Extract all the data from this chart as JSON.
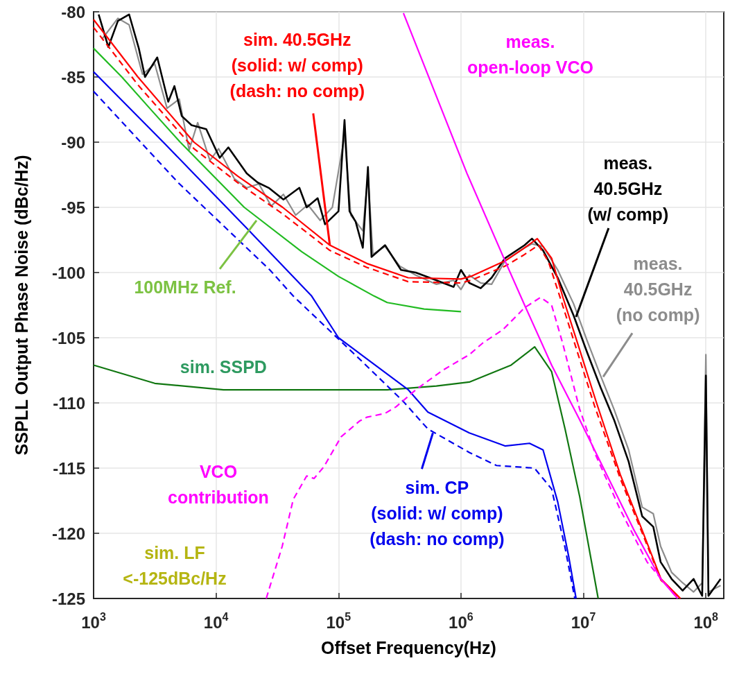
{
  "chart_data": {
    "type": "line",
    "xlabel": "Offset Frequency(Hz)",
    "ylabel": "SSPLL Output Phase Noise (dBc/Hz)",
    "log": "x",
    "grid": true,
    "marker": "none",
    "xlim": [
      1000,
      140000000
    ],
    "xticks": [
      {
        "value": 1000,
        "label": "10$^{3}$"
      },
      {
        "value": 10000,
        "label": "10$^{4}$"
      },
      {
        "value": 100000,
        "label": "10$^{5}$"
      },
      {
        "value": 1000000,
        "label": "10$^{6}$"
      },
      {
        "value": 10000000,
        "label": "10$^{7}$"
      },
      {
        "value": 100000000,
        "label": "10$^{8}$"
      }
    ],
    "ylim": [
      -125,
      -80
    ],
    "yticks": [
      -125,
      -120,
      -115,
      -110,
      -105,
      -100,
      -95,
      -90,
      -85,
      -80
    ],
    "series": [
      {
        "color": "#8c8c8c",
        "line_style": "solid",
        "x": [
          1170,
          1580,
          1950,
          2510,
          3160,
          3980,
          5010,
          6030,
          7080,
          8910,
          10500,
          14100,
          17800,
          22400,
          28200,
          35500,
          44700,
          56200,
          70800,
          89100,
          112000,
          126000,
          158000,
          174000,
          191000,
          240000,
          316000,
          427000,
          631000,
          871000,
          1000000,
          1170000,
          1450000,
          1780000,
          2290000,
          3310000,
          3800000,
          4680000,
          6170000,
          8320000,
          10700000,
          13800000,
          17800000,
          23400000,
          30200000,
          37200000,
          42700000,
          52500000,
          64600000,
          79400000,
          93300000,
          100000000,
          105000000,
          132000000
        ],
        "values": [
          -82.1,
          -80.5,
          -81.0,
          -84.8,
          -84.0,
          -87.4,
          -86.7,
          -90.6,
          -88.5,
          -91.4,
          -90.5,
          -92.8,
          -93.5,
          -93.2,
          -94.9,
          -94.0,
          -95.6,
          -94.8,
          -96.0,
          -95.0,
          -89.5,
          -95.6,
          -96.8,
          -92.5,
          -98.6,
          -98.0,
          -99.5,
          -100.2,
          -100.9,
          -100.6,
          -101.3,
          -100.2,
          -100.8,
          -100.9,
          -99.1,
          -98.1,
          -97.8,
          -98.0,
          -99.8,
          -102.4,
          -105.2,
          -107.9,
          -110.5,
          -113.6,
          -118.0,
          -118.5,
          -121.0,
          -123.0,
          -123.8,
          -124.5,
          -123.8,
          -106.3,
          -124.5,
          -124.0
        ]
      },
      {
        "color": "#000000",
        "line_style": "solid",
        "x": [
          1100,
          1320,
          1580,
          1950,
          2340,
          2630,
          3310,
          4070,
          4570,
          5250,
          6310,
          8320,
          10700,
          12600,
          17800,
          21900,
          26900,
          35500,
          47900,
          55000,
          67600,
          77600,
          100000,
          112000,
          123000,
          138000,
          158000,
          174000,
          186000,
          240000,
          324000,
          427000,
          631000,
          871000,
          1000000,
          1170000,
          1450000,
          1780000,
          2290000,
          3310000,
          3800000,
          4680000,
          6170000,
          8320000,
          10700000,
          13800000,
          17800000,
          23400000,
          30200000,
          37200000,
          42700000,
          52500000,
          64600000,
          79400000,
          93300000,
          100000000,
          105000000,
          132000000
        ],
        "values": [
          -80.2,
          -82.7,
          -80.7,
          -80.2,
          -82.8,
          -85.0,
          -83.5,
          -86.9,
          -85.7,
          -88.0,
          -88.7,
          -89.0,
          -91.2,
          -90.4,
          -92.4,
          -93.1,
          -93.5,
          -94.4,
          -93.5,
          -95.0,
          -94.3,
          -96.3,
          -95.3,
          -88.3,
          -95.3,
          -96.1,
          -98.1,
          -91.9,
          -98.8,
          -97.9,
          -99.8,
          -100.0,
          -100.6,
          -101.1,
          -99.8,
          -100.8,
          -101.2,
          -100.4,
          -98.9,
          -97.9,
          -97.4,
          -98.3,
          -100.4,
          -103.3,
          -106.1,
          -108.8,
          -111.3,
          -114.5,
          -118.7,
          -119.5,
          -122.2,
          -123.5,
          -124.4,
          -123.5,
          -124.8,
          -107.9,
          -124.8,
          -123.5
        ]
      },
      {
        "color": "#ff0000",
        "line_style": "dashed",
        "x": [
          1000,
          2300,
          6600,
          15000,
          35000,
          85000,
          170000,
          370000,
          1000000,
          1200000,
          2300000,
          3200000,
          4300000,
          5200000,
          6500000,
          9000000,
          12300000,
          20000000,
          30000000,
          43000000,
          62000000
        ],
        "values": [
          -81.2,
          -85.6,
          -90.5,
          -93.1,
          -95.5,
          -98.3,
          -99.6,
          -100.7,
          -100.8,
          -100.6,
          -99.5,
          -98.7,
          -97.9,
          -99.2,
          -102.0,
          -106.2,
          -110.2,
          -115.8,
          -119.9,
          -123.6,
          -125
        ]
      },
      {
        "color": "#ff0000",
        "line_style": "solid",
        "x": [
          1000,
          2300,
          6600,
          15000,
          35000,
          85000,
          170000,
          370000,
          1000000,
          1200000,
          2300000,
          3200000,
          4200000,
          5500000,
          6800000,
          9300000,
          12600000,
          20000000,
          30000000,
          43000000,
          62000000
        ],
        "values": [
          -80.6,
          -85,
          -90,
          -92.6,
          -95,
          -97.9,
          -99.3,
          -100.4,
          -100.5,
          -100.3,
          -99.1,
          -98.2,
          -97.4,
          -98.9,
          -101.9,
          -105.9,
          -109.8,
          -115.5,
          -119.7,
          -123.5,
          -125
        ]
      },
      {
        "color": "#22bb22",
        "line_style": "solid",
        "x": [
          1000,
          1700,
          3000,
          5100,
          17000,
          50000,
          100000,
          195000,
          250000,
          500000,
          1000000
        ],
        "values": [
          -82.8,
          -85,
          -87.6,
          -90,
          -95,
          -98.4,
          -100.3,
          -101.8,
          -102.3,
          -102.8,
          -103.0
        ]
      },
      {
        "color": "#117711",
        "line_style": "solid",
        "x": [
          1000,
          3160,
          11500,
          100000,
          250000,
          630000,
          1170000,
          2570000,
          4000000,
          5500000,
          7080000,
          9330000,
          13200000
        ],
        "values": [
          -107.1,
          -108.5,
          -109.0,
          -109.0,
          -109.0,
          -108.7,
          -108.4,
          -107.1,
          -105.7,
          -107.6,
          -112.0,
          -117.2,
          -125
        ]
      },
      {
        "color": "#0000ee",
        "line_style": "dashed",
        "x": [
          1000,
          4900,
          27500,
          42700,
          155000,
          339000,
          537000,
          1170000,
          1950000,
          3980000,
          5500000,
          7080000,
          8510000
        ],
        "values": [
          -86.1,
          -93.1,
          -99.8,
          -101.8,
          -106.8,
          -109.9,
          -112.0,
          -113.8,
          -114.8,
          -115.0,
          -116.6,
          -121.1,
          -125
        ]
      },
      {
        "color": "#0000ee",
        "line_style": "solid",
        "x": [
          1000,
          3890,
          17800,
          60300,
          100000,
          372000,
          537000,
          1170000,
          2290000,
          3630000,
          4680000,
          6170000,
          7590000,
          8710000
        ],
        "values": [
          -84.6,
          -90.2,
          -96.6,
          -101.8,
          -105.0,
          -109.0,
          -110.7,
          -112.3,
          -113.3,
          -113.1,
          -113.6,
          -117.6,
          -121.8,
          -125
        ]
      },
      {
        "color": "#ff00ff",
        "line_style": "dashed",
        "x": [
          25700,
          34700,
          42700,
          55000,
          63100,
          75900,
          105000,
          148000,
          170000,
          240000,
          295000,
          427000,
          708000,
          1170000,
          1510000,
          2190000,
          3310000,
          4470000,
          5500000,
          6760000,
          9330000,
          12600000,
          20000000,
          33100000,
          56200000
        ],
        "values": [
          -125,
          -121,
          -117.4,
          -115.6,
          -115.8,
          -114.9,
          -112.6,
          -111.4,
          -111.1,
          -110.8,
          -110.3,
          -109.0,
          -107.5,
          -106.3,
          -105.4,
          -104.4,
          -102.7,
          -101.9,
          -102.5,
          -105.4,
          -110.5,
          -114.0,
          -118.2,
          -122.2,
          -124.8
        ]
      },
      {
        "color": "#ff00ff",
        "line_style": "solid",
        "x": [
          339000,
          1120000,
          2290000,
          3310000,
          5500000,
          9330000,
          15500000,
          25700000,
          42700000,
          58900000
        ],
        "values": [
          -80.1,
          -92.4,
          -99.1,
          -102.5,
          -107.1,
          -111.3,
          -115.5,
          -119.7,
          -123.5,
          -125
        ]
      }
    ],
    "annotations": [
      {
        "text": "sim. 40.5GHz\n(solid: w/ comp)\n(dash: no comp)",
        "x": 85000,
        "y": -97.9
      },
      {
        "text": "100MHz Ref.",
        "x": 21400,
        "y": -96.0
      },
      {
        "text": "sim. SSPD",
        "x": 11500,
        "y": -109.0
      },
      {
        "text": "VCO\ncontribution",
        "x": 42700,
        "y": -117.4
      },
      "sim. LF\n<-125dBc/Hz",
      "meas.\nopen-loop VCO",
      {
        "text": "meas.\n40.5GHz\n(w/ comp)",
        "x": 8700000,
        "y": -103.4
      },
      {
        "text": "meas.\n40.5GHz\n(no comp)",
        "x": 14500000,
        "y": -108.0
      },
      {
        "text": "sim. CP\n(solid: w/ comp)\n(dash: no comp)",
        "x": 590000,
        "y": -112.3
      }
    ]
  }
}
